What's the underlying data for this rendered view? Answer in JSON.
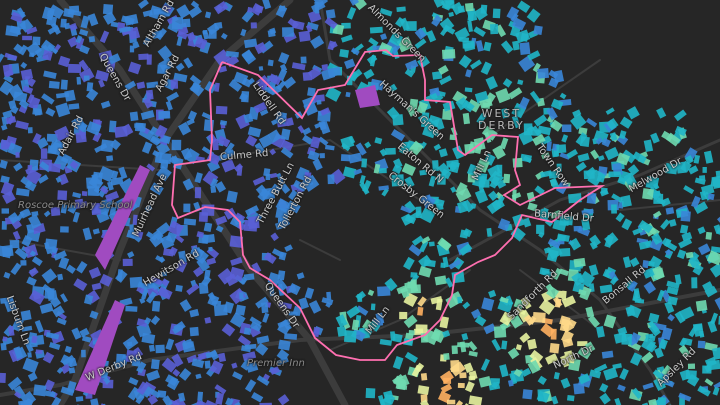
{
  "map": {
    "colors": {
      "background": "#262626",
      "road": "#3c3c3c",
      "boundary": "#ff6fb0",
      "building_scale": [
        "#6a3fb8",
        "#5a5fd6",
        "#3a86d8",
        "#20b6c8",
        "#6fdab0",
        "#e8f3a0",
        "#ffd98a",
        "#ffb060"
      ]
    },
    "place_label": [
      "WEST",
      "DERBY"
    ],
    "poi_labels": {
      "school": "Roscoe Primary School",
      "hotel": "Premier Inn"
    },
    "street_labels": {
      "altham": "Altham Rd",
      "queens1": "Queens Dr",
      "agar": "Agar Rd",
      "adair": "Adair Rd",
      "muirhead": "Muirhead Ave",
      "culme": "Culme Rd",
      "liddell": "Liddell Rd",
      "threebutt": "Three Butt Ln",
      "tollerton": "Tollerton Rd",
      "hewitson": "Hewitson Rd",
      "queens2": "Queens Dr",
      "wderby": "W Derby Rd",
      "lisburn": "Lisburn Ln",
      "almonds": "Almonds Green",
      "haymans": "Hayman's Green",
      "eaton": "Eaton Rd N",
      "crosby": "Crosby Green",
      "millln1": "Mill Ln",
      "millln2": "Mill Ln",
      "townrow": "Town Row",
      "barnfield": "Barnfield Dr",
      "melwood": "Melwood Dr",
      "sandforth": "Sandforth Rd",
      "bonsall": "Bonsall Rd",
      "north": "North Dr",
      "apsley": "Apsley Rd"
    }
  }
}
